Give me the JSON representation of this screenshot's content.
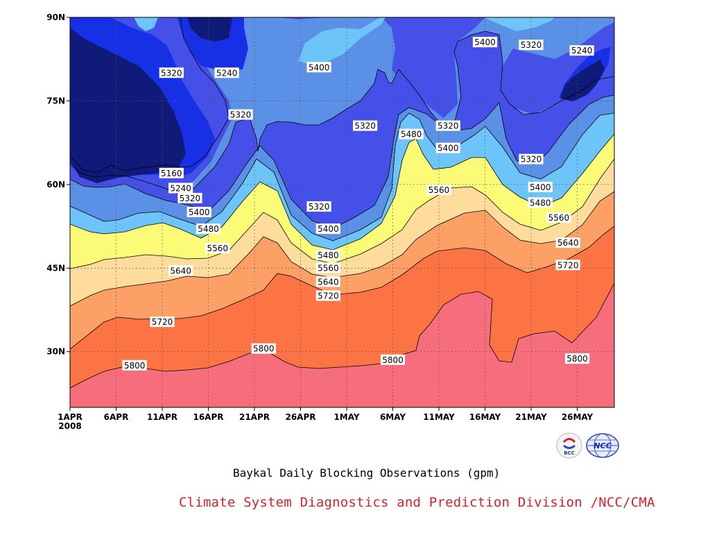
{
  "chart_data": {
    "type": "contour",
    "title": "",
    "subtitle": "Baykal Daily Blocking Observations (gpm)",
    "credit": "Climate System Diagnostics and Prediction Division /NCC/CMA",
    "xlabel": "",
    "ylabel": "",
    "x_ticks": [
      "1APR",
      "6APR",
      "11APR",
      "16APR",
      "21APR",
      "26APR",
      "1MAY",
      "6MAY",
      "11MAY",
      "16MAY",
      "21MAY",
      "26MAY"
    ],
    "x_year_label": "2008",
    "y_ticks": [
      "90N",
      "75N",
      "60N",
      "45N",
      "30N"
    ],
    "ylim": [
      20,
      90
    ],
    "xlim_days": [
      0,
      59
    ],
    "grid": true,
    "levels": [
      5160,
      5240,
      5320,
      5400,
      5480,
      5560,
      5640,
      5720,
      5800
    ],
    "colors": [
      "#101a78",
      "#1730e6",
      "#4450e8",
      "#5a90e6",
      "#6cc4f8",
      "#fbfb78",
      "#fddc9c",
      "#fca066",
      "#fd7444",
      "#f66e7c"
    ],
    "contour_labels": [
      {
        "text": "5320",
        "day": 11,
        "lat": 80
      },
      {
        "text": "5240",
        "day": 17,
        "lat": 80
      },
      {
        "text": "5400",
        "day": 27,
        "lat": 81
      },
      {
        "text": "5400",
        "day": 45,
        "lat": 85.5
      },
      {
        "text": "5320",
        "day": 50,
        "lat": 85
      },
      {
        "text": "5240",
        "day": 55.5,
        "lat": 84
      },
      {
        "text": "5320",
        "day": 18.5,
        "lat": 72.5
      },
      {
        "text": "5320",
        "day": 32,
        "lat": 70.5
      },
      {
        "text": "5320",
        "day": 41,
        "lat": 70.5
      },
      {
        "text": "5480",
        "day": 37,
        "lat": 69
      },
      {
        "text": "5400",
        "day": 41,
        "lat": 66.5
      },
      {
        "text": "5320",
        "day": 50,
        "lat": 64.5
      },
      {
        "text": "5160",
        "day": 11,
        "lat": 62
      },
      {
        "text": "5240",
        "day": 12,
        "lat": 59.3
      },
      {
        "text": "5320",
        "day": 13,
        "lat": 57.5
      },
      {
        "text": "5400",
        "day": 14,
        "lat": 55
      },
      {
        "text": "5480",
        "day": 15,
        "lat": 52
      },
      {
        "text": "5560",
        "day": 16,
        "lat": 48.5
      },
      {
        "text": "5640",
        "day": 12,
        "lat": 44.5
      },
      {
        "text": "5720",
        "day": 10,
        "lat": 35.3
      },
      {
        "text": "5800",
        "day": 7,
        "lat": 27.5
      },
      {
        "text": "5800",
        "day": 21,
        "lat": 30.5
      },
      {
        "text": "5320",
        "day": 27,
        "lat": 56
      },
      {
        "text": "5400",
        "day": 28,
        "lat": 52
      },
      {
        "text": "5480",
        "day": 28,
        "lat": 47.3
      },
      {
        "text": "5560",
        "day": 28,
        "lat": 45
      },
      {
        "text": "5640",
        "day": 28,
        "lat": 42.5
      },
      {
        "text": "5720",
        "day": 28,
        "lat": 40
      },
      {
        "text": "5560",
        "day": 40,
        "lat": 59
      },
      {
        "text": "5400",
        "day": 51,
        "lat": 59.5
      },
      {
        "text": "5480",
        "day": 51,
        "lat": 56.7
      },
      {
        "text": "5560",
        "day": 53,
        "lat": 54
      },
      {
        "text": "5640",
        "day": 54,
        "lat": 49.5
      },
      {
        "text": "5720",
        "day": 54,
        "lat": 45.5
      },
      {
        "text": "5800",
        "day": 55,
        "lat": 28.7
      },
      {
        "text": "5800",
        "day": 35,
        "lat": 28.5
      }
    ]
  },
  "logos": {
    "left": "BCC",
    "right": "NCC"
  }
}
